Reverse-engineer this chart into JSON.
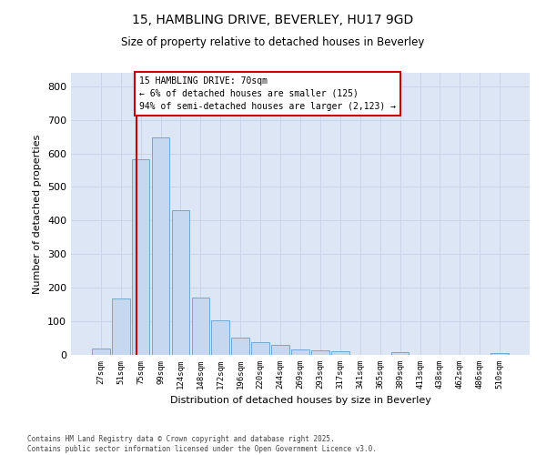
{
  "title_line1": "15, HAMBLING DRIVE, BEVERLEY, HU17 9GD",
  "title_line2": "Size of property relative to detached houses in Beverley",
  "xlabel": "Distribution of detached houses by size in Beverley",
  "ylabel": "Number of detached properties",
  "footer": "Contains HM Land Registry data © Crown copyright and database right 2025.\nContains public sector information licensed under the Open Government Licence v3.0.",
  "categories": [
    "27sqm",
    "51sqm",
    "75sqm",
    "99sqm",
    "124sqm",
    "148sqm",
    "172sqm",
    "196sqm",
    "220sqm",
    "244sqm",
    "269sqm",
    "293sqm",
    "317sqm",
    "341sqm",
    "365sqm",
    "389sqm",
    "413sqm",
    "438sqm",
    "462sqm",
    "486sqm",
    "510sqm"
  ],
  "values": [
    18,
    168,
    582,
    648,
    430,
    172,
    104,
    52,
    38,
    30,
    15,
    13,
    10,
    0,
    0,
    7,
    0,
    0,
    0,
    0,
    6
  ],
  "bar_color": "#c5d8f0",
  "bar_edge_color": "#6fa8d4",
  "grid_color": "#c8d4e8",
  "background_color": "#dce6f5",
  "annotation_text": "15 HAMBLING DRIVE: 70sqm\n← 6% of detached houses are smaller (125)\n94% of semi-detached houses are larger (2,123) →",
  "annotation_box_color": "#ffffff",
  "annotation_box_edge": "#cc0000",
  "property_line_color": "#cc0000",
  "ylim": [
    0,
    840
  ],
  "yticks": [
    0,
    100,
    200,
    300,
    400,
    500,
    600,
    700,
    800
  ]
}
